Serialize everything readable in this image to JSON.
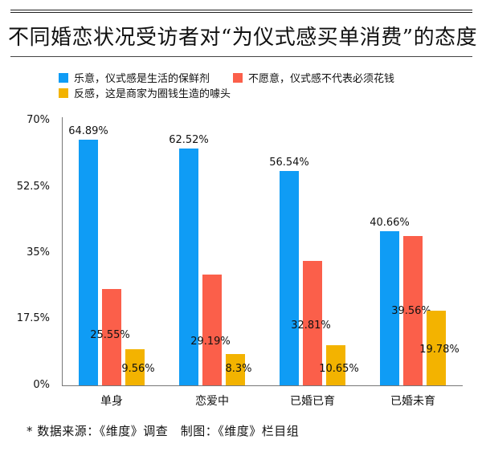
{
  "title": "不同婚恋状况受访者对“为仪式感买单消费”的态度",
  "legend": [
    {
      "label": "乐意，仪式感是生活的保鲜剂",
      "color": "#0f9cf5"
    },
    {
      "label": "不愿意，仪式感不代表必须花钱",
      "color": "#fb5f4a"
    },
    {
      "label": "反感，这是商家为圈钱生造的噱头",
      "color": "#f3b300"
    }
  ],
  "y_ticks": [
    "70%",
    "52.5%",
    "35%",
    "17.5%",
    "0%"
  ],
  "source": "* 数据来源：《维度》调查　制图：《维度》栏目组",
  "chart_data": {
    "type": "bar",
    "title": "不同婚恋状况受访者对“为仪式感买单消费”的态度",
    "categories": [
      "单身",
      "恋爱中",
      "已婚已育",
      "已婚未育"
    ],
    "series": [
      {
        "name": "乐意，仪式感是生活的保鲜剂",
        "color": "#0f9cf5",
        "values": [
          64.89,
          62.52,
          56.54,
          40.66
        ],
        "labels": [
          "64.89%",
          "62.52%",
          "56.54%",
          "40.66%"
        ]
      },
      {
        "name": "不愿意，仪式感不代表必须花钱",
        "color": "#fb5f4a",
        "values": [
          25.55,
          29.19,
          32.81,
          39.56
        ],
        "labels": [
          "25.55%",
          "29.19%",
          "32.81%",
          "39.56%"
        ]
      },
      {
        "name": "反感，这是商家为圈钱生造的噱头",
        "color": "#f3b300",
        "values": [
          9.56,
          8.3,
          10.65,
          19.78
        ],
        "labels": [
          "9.56%",
          "8.3%",
          "10.65%",
          "19.78%"
        ]
      }
    ],
    "xlabel": "",
    "ylabel": "",
    "ylim": [
      0,
      70
    ],
    "yticks": [
      0,
      17.5,
      35,
      52.5,
      70
    ],
    "grid": false,
    "legend_position": "top"
  }
}
